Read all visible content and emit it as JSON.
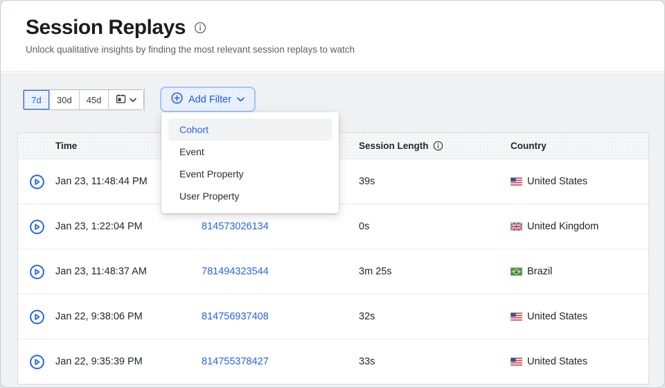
{
  "colors": {
    "accent": "#2563eb"
  },
  "page": {
    "title": "Session Replays",
    "subtitle": "Unlock qualitative insights by finding the most relevant session replays to watch"
  },
  "toolbar": {
    "date_ranges": [
      {
        "label": "7d",
        "selected": true
      },
      {
        "label": "30d",
        "selected": false
      },
      {
        "label": "45d",
        "selected": false
      }
    ],
    "add_filter_label": "Add Filter"
  },
  "filter_menu": {
    "items": [
      {
        "label": "Cohort",
        "active": true
      },
      {
        "label": "Event",
        "active": false
      },
      {
        "label": "Event Property",
        "active": false
      },
      {
        "label": "User Property",
        "active": false
      }
    ]
  },
  "table": {
    "columns": {
      "time": "Time",
      "session_length": "Session Length",
      "country": "Country"
    },
    "rows": [
      {
        "time": "Jan 23, 11:48:44 PM",
        "id": "",
        "length": "39s",
        "country": "United States",
        "flag": "us"
      },
      {
        "time": "Jan 23, 1:22:04 PM",
        "id": "814573026134",
        "length": "0s",
        "country": "United Kingdom",
        "flag": "gb"
      },
      {
        "time": "Jan 23, 11:48:37 AM",
        "id": "781494323544",
        "length": "3m 25s",
        "country": "Brazil",
        "flag": "br"
      },
      {
        "time": "Jan 22, 9:38:06 PM",
        "id": "814756937408",
        "length": "32s",
        "country": "United States",
        "flag": "us"
      },
      {
        "time": "Jan 22, 9:35:39 PM",
        "id": "814755378427",
        "length": "33s",
        "country": "United States",
        "flag": "us"
      }
    ]
  }
}
